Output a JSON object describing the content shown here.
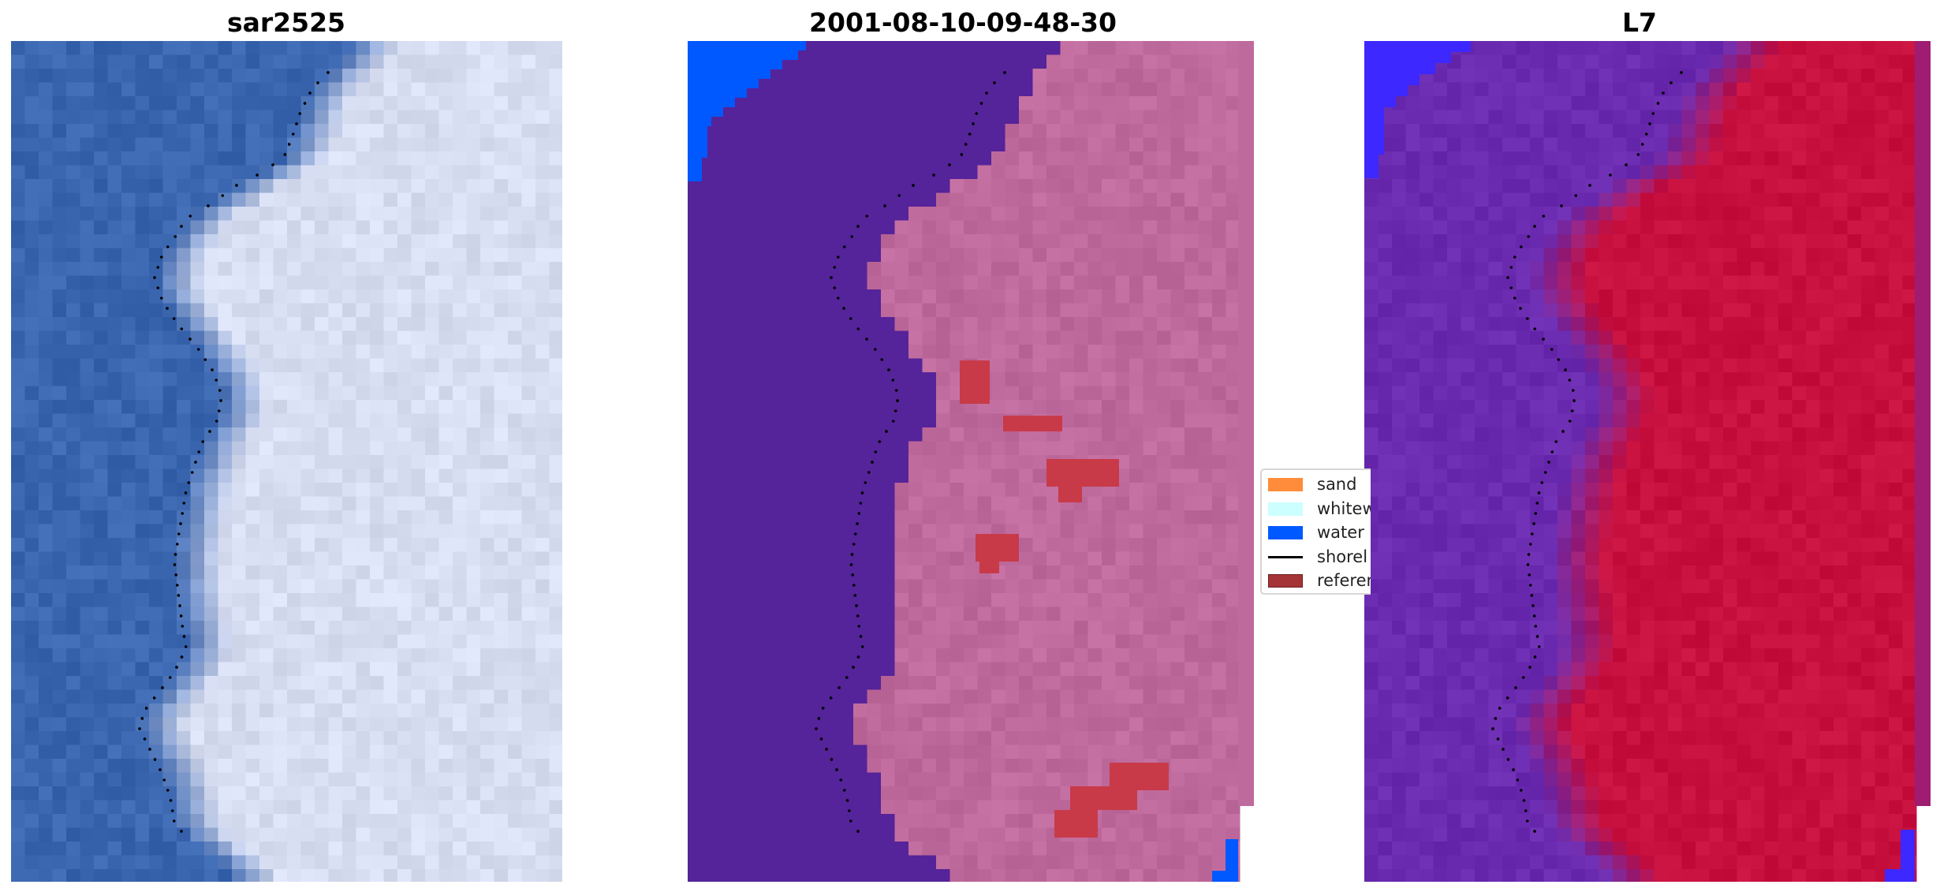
{
  "panels": [
    {
      "title": "sar2525"
    },
    {
      "title": "2001-08-10-09-48-30"
    },
    {
      "title": "L7"
    }
  ],
  "legend": {
    "items": [
      {
        "label": "sand",
        "color": "#ff8c3a",
        "kind": "patch"
      },
      {
        "label": "whitew",
        "color": "#ccffff",
        "kind": "patch"
      },
      {
        "label": "water",
        "color": "#0059ff",
        "kind": "patch"
      },
      {
        "label": "shorel",
        "color": "#000000",
        "kind": "line"
      },
      {
        "label": "referen",
        "color": "#a53437",
        "kind": "patch"
      }
    ]
  },
  "colors": {
    "rgb_water": "#3a66b0",
    "rgb_land": "#d8def2",
    "class_water_bg": "#55239a",
    "class_land": "#bf6a9c",
    "class_water": "#0058ff",
    "class_reference": "#c83a48",
    "mndwi_low": "#6a2bb0",
    "mndwi_high": "#c8103e",
    "mndwi_blue": "#3d28ff",
    "shoreline": "#000000"
  }
}
